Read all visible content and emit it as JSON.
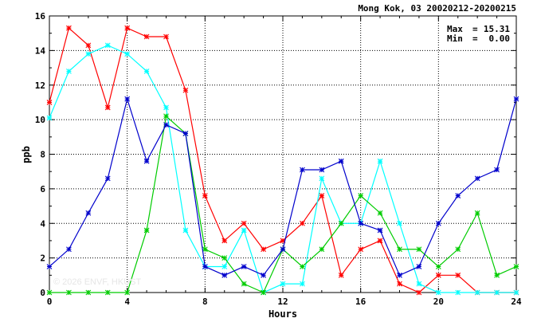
{
  "chart_data": {
    "type": "line",
    "title": "Mong Kok, 03 20020212-20200215",
    "xlabel": "Hours",
    "ylabel": "ppb",
    "xlim": [
      0,
      24
    ],
    "ylim": [
      0,
      16
    ],
    "xticks": [
      0,
      4,
      8,
      12,
      16,
      20,
      24
    ],
    "yticks": [
      0,
      2,
      4,
      6,
      8,
      10,
      12,
      14,
      16
    ],
    "grid": true,
    "stats": {
      "max_label": "Max",
      "max_value": "15.31",
      "min_label": "Min",
      "min_value": "0.00"
    },
    "watermark": "© 2026 ENVF, HKUST",
    "x": [
      0,
      1,
      2,
      3,
      4,
      5,
      6,
      7,
      8,
      9,
      10,
      11,
      12,
      13,
      14,
      15,
      16,
      17,
      18,
      19,
      20,
      21,
      22,
      23,
      24
    ],
    "series": [
      {
        "color": "#ff0000",
        "values": [
          11.0,
          15.3,
          14.3,
          10.7,
          15.3,
          14.8,
          14.8,
          11.7,
          5.6,
          3.0,
          4.0,
          2.5,
          3.0,
          4.0,
          5.6,
          1.0,
          2.5,
          3.0,
          0.5,
          0.0,
          1.0,
          1.0,
          0.0,
          0.0,
          0.0
        ]
      },
      {
        "color": "#00ffff",
        "values": [
          10.1,
          12.8,
          13.8,
          14.3,
          13.8,
          12.8,
          10.7,
          3.6,
          1.5,
          1.5,
          3.6,
          0.0,
          0.5,
          0.5,
          6.6,
          4.0,
          4.0,
          7.6,
          4.0,
          0.5,
          0.0,
          0.0,
          0.0,
          0.0,
          0.0
        ]
      },
      {
        "color": "#00cc00",
        "values": [
          0.0,
          0.0,
          0.0,
          0.0,
          0.0,
          3.6,
          10.2,
          9.2,
          2.5,
          2.0,
          0.5,
          0.0,
          2.5,
          1.5,
          2.5,
          4.0,
          5.6,
          4.6,
          2.5,
          2.5,
          1.5,
          2.5,
          4.6,
          1.0,
          1.5
        ]
      },
      {
        "color": "#0000cc",
        "values": [
          1.5,
          2.5,
          4.6,
          6.6,
          11.2,
          7.6,
          9.7,
          9.2,
          1.5,
          1.0,
          1.5,
          1.0,
          2.5,
          7.1,
          7.1,
          7.6,
          4.0,
          3.6,
          1.0,
          1.5,
          4.0,
          5.6,
          6.6,
          7.1,
          11.2
        ]
      }
    ]
  }
}
